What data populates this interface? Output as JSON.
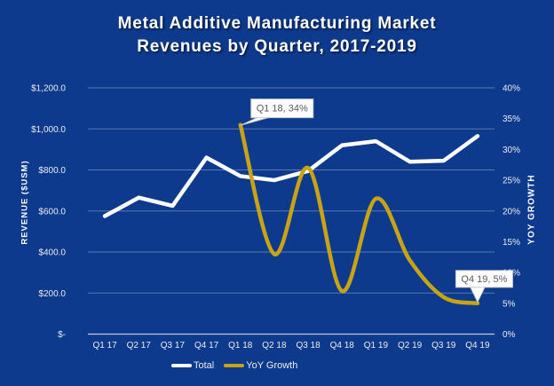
{
  "title": {
    "line1": "Metal Additive Manufacturing Market",
    "line2": "Revenues by Quarter, 2017-2019"
  },
  "chart_data": {
    "type": "line",
    "categories": [
      "Q1 17",
      "Q2 17",
      "Q3 17",
      "Q4 17",
      "Q1 18",
      "Q2 18",
      "Q3 18",
      "Q4 18",
      "Q1 19",
      "Q2 19",
      "Q3 19",
      "Q4 19"
    ],
    "series": [
      {
        "name": "Total",
        "axis": "left",
        "color": "#ffffff",
        "smooth": false,
        "values": [
          575,
          665,
          625,
          860,
          770,
          750,
          795,
          920,
          940,
          840,
          845,
          965
        ]
      },
      {
        "name": "YoY Growth",
        "axis": "right",
        "color": "#c8a415",
        "smooth": true,
        "values": [
          null,
          null,
          null,
          null,
          34,
          13,
          27,
          7,
          22,
          12,
          6,
          5
        ]
      }
    ],
    "left_axis": {
      "title": "REVENUE ($USM)",
      "range": [
        0,
        1200
      ],
      "tick_labels": [
        "$1,200.0",
        "$1,000.0",
        "$800.0",
        "$600.0",
        "$400.0",
        "$200.0",
        "$-"
      ],
      "tick_values": [
        1200,
        1000,
        800,
        600,
        400,
        200,
        0
      ]
    },
    "right_axis": {
      "title": "YOY GROWTH",
      "range": [
        0,
        40
      ],
      "tick_labels": [
        "40%",
        "35%",
        "30%",
        "25%",
        "20%",
        "15%",
        "10%",
        "5%",
        "0%"
      ],
      "tick_values": [
        40,
        35,
        30,
        25,
        20,
        15,
        10,
        5,
        0
      ]
    },
    "grid": "horizontal-left-ticks-only",
    "legend_position": "bottom",
    "annotations": [
      {
        "text": "Q1 18, 34%",
        "series": "YoY Growth",
        "category": "Q1 18",
        "value": 34
      },
      {
        "text": "Q4 19, 5%",
        "series": "YoY Growth",
        "category": "Q4 19",
        "value": 5
      }
    ]
  },
  "colors": {
    "background": "#0d3a8c",
    "total_line": "#ffffff",
    "yoy_line": "#c8a415",
    "gridline": "rgba(255,255,255,0.32)",
    "axis_line": "rgba(255,255,255,0.75)",
    "tick_label": "#ededed",
    "annotation_text": "#595959",
    "annotation_box": "#ffffff",
    "annotation_border": "#c9c9c9"
  }
}
